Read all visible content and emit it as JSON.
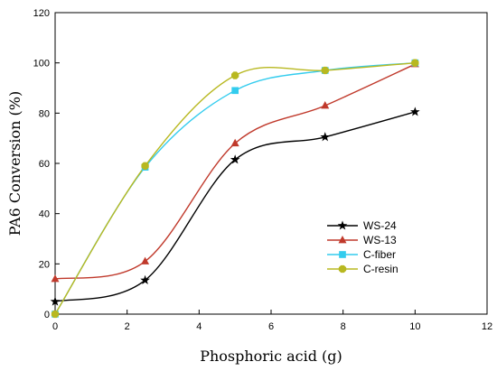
{
  "chart_data": {
    "type": "line",
    "title": "",
    "xlabel": "Phosphoric acid (g)",
    "ylabel": "PA6 Conversion (%)",
    "xlim": [
      0,
      12
    ],
    "ylim": [
      0,
      120
    ],
    "xticks": [
      0,
      2,
      4,
      6,
      8,
      10,
      12
    ],
    "yticks": [
      0,
      20,
      40,
      60,
      80,
      100,
      120
    ],
    "grid": false,
    "legend_position": "lower-right",
    "smooth": true,
    "series": [
      {
        "name": "WS-24",
        "color": "#000000",
        "marker": "star",
        "x": [
          0,
          2.5,
          5,
          7.5,
          10
        ],
        "y": [
          5,
          13.5,
          61.5,
          70.5,
          80.5
        ]
      },
      {
        "name": "WS-13",
        "color": "#c0392b",
        "marker": "triangle",
        "x": [
          0,
          2.5,
          5,
          7.5,
          10
        ],
        "y": [
          14,
          21,
          68,
          83,
          99.5
        ]
      },
      {
        "name": "C-fiber",
        "color": "#33ccee",
        "marker": "square",
        "x": [
          0,
          2.5,
          5,
          7.5,
          10
        ],
        "y": [
          0,
          58.5,
          89,
          97,
          100
        ]
      },
      {
        "name": "C-resin",
        "color": "#b8b820",
        "marker": "octagon",
        "x": [
          0,
          2.5,
          5,
          7.5,
          10
        ],
        "y": [
          0,
          59,
          95,
          97,
          100
        ]
      }
    ]
  }
}
